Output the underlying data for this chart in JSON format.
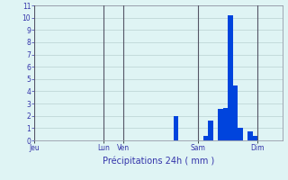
{
  "title": "Précipitations 24h ( mm )",
  "bar_color": "#0044dd",
  "background_color": "#dff4f4",
  "grid_color": "#b0c8c8",
  "text_color": "#3333aa",
  "ylim": [
    0,
    11
  ],
  "yticks": [
    0,
    1,
    2,
    3,
    4,
    5,
    6,
    7,
    8,
    9,
    10,
    11
  ],
  "bar_values": [
    0,
    0,
    0,
    0,
    0,
    0,
    0,
    0,
    0,
    0,
    0,
    0,
    0,
    0,
    0,
    0,
    0,
    0,
    0,
    0,
    0,
    0,
    0,
    0,
    0,
    0,
    0,
    0,
    2.0,
    0,
    0,
    0,
    0,
    0,
    0.35,
    1.65,
    0,
    2.6,
    2.65,
    10.2,
    4.5,
    1.0,
    0,
    0.7,
    0.35,
    0,
    0,
    0,
    0,
    0
  ],
  "day_labels": [
    "Jeu",
    "Lun",
    "Ven",
    "Sam",
    "Dim"
  ],
  "day_positions": [
    0,
    14,
    18,
    33,
    45
  ],
  "n_bars": 50
}
